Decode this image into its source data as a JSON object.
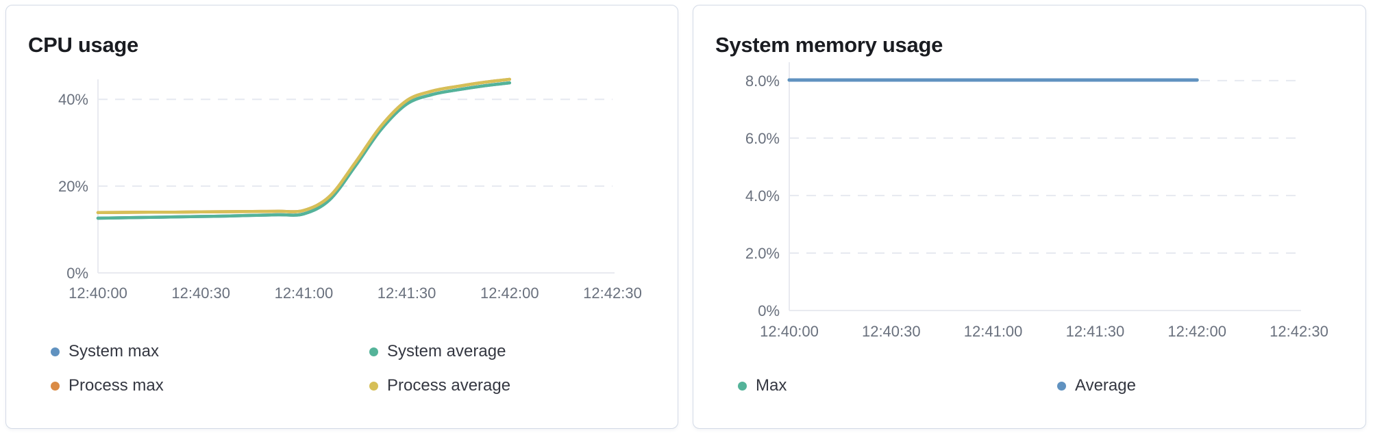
{
  "page": {
    "background": "#ffffff"
  },
  "colors": {
    "panel_border": "#d3dae6",
    "title_text": "#1a1c21",
    "tick_text": "#69707d",
    "legend_text": "#343741",
    "gridline": "#e6e9f0",
    "axis_line": "#e8eaf0"
  },
  "chart_data": [
    {
      "type": "line",
      "title": "CPU usage",
      "xlabel": "",
      "ylabel": "",
      "legend_position": "bottom",
      "grid": "dashed-horizontal",
      "x_ticks": [
        "12:40:00",
        "12:40:30",
        "12:41:00",
        "12:41:30",
        "12:42:00",
        "12:42:30"
      ],
      "x_tick_seconds": [
        0,
        30,
        60,
        90,
        120,
        150
      ],
      "x_range_seconds": [
        0,
        150
      ],
      "y_ticks": [
        {
          "v": 0,
          "label": "0%"
        },
        {
          "v": 20,
          "label": "20%"
        },
        {
          "v": 40,
          "label": "40%"
        }
      ],
      "grid_values": [
        20,
        40
      ],
      "ylim": [
        0,
        44.6
      ],
      "data_x_seconds": [
        0,
        7.5,
        15,
        22.5,
        30,
        37.5,
        45,
        52.5,
        60,
        67.5,
        75,
        82.5,
        90,
        97.5,
        105,
        112.5,
        120
      ],
      "series": [
        {
          "name": "System max",
          "color": "#6092c0",
          "values": [
            12.6,
            12.7,
            12.8,
            12.9,
            13.0,
            13.1,
            13.25,
            13.4,
            13.6,
            16.8,
            24.6,
            33.0,
            38.9,
            41.1,
            42.2,
            43.1,
            43.8
          ]
        },
        {
          "name": "System average",
          "color": "#54b399",
          "values": [
            12.6,
            12.7,
            12.8,
            12.9,
            13.0,
            13.1,
            13.25,
            13.4,
            13.6,
            16.8,
            24.6,
            33.0,
            38.9,
            41.1,
            42.2,
            43.1,
            43.8
          ]
        },
        {
          "name": "Process max",
          "color": "#da8b45",
          "values": [
            13.9,
            13.95,
            14.0,
            14.0,
            14.05,
            14.1,
            14.15,
            14.2,
            14.4,
            17.6,
            25.4,
            33.8,
            39.7,
            41.9,
            43.0,
            43.9,
            44.6
          ]
        },
        {
          "name": "Process average",
          "color": "#d6bf57",
          "values": [
            13.9,
            13.95,
            14.0,
            14.0,
            14.05,
            14.1,
            14.15,
            14.2,
            14.4,
            17.6,
            25.4,
            33.8,
            39.7,
            41.9,
            43.0,
            43.9,
            44.6
          ]
        }
      ],
      "note": "System max overlaps System average; Process max overlaps Process average. Visible lines: green (System average) and yellow (Process average). Data ends at 12:42:00."
    },
    {
      "type": "line",
      "title": "System memory usage",
      "xlabel": "",
      "ylabel": "",
      "legend_position": "bottom",
      "grid": "dashed-horizontal",
      "x_ticks": [
        "12:40:00",
        "12:40:30",
        "12:41:00",
        "12:41:30",
        "12:42:00",
        "12:42:30"
      ],
      "x_tick_seconds": [
        0,
        30,
        60,
        90,
        120,
        150
      ],
      "x_range_seconds": [
        0,
        150
      ],
      "y_ticks": [
        {
          "v": 0,
          "label": "0%"
        },
        {
          "v": 2,
          "label": "2.0%"
        },
        {
          "v": 4,
          "label": "4.0%"
        },
        {
          "v": 6,
          "label": "6.0%"
        },
        {
          "v": 8,
          "label": "8.0%"
        }
      ],
      "grid_values": [
        2,
        4,
        6,
        8
      ],
      "ylim": [
        0,
        8.64
      ],
      "data_x_seconds": [
        0,
        15,
        30,
        45,
        60,
        75,
        90,
        105,
        120
      ],
      "series": [
        {
          "name": "Max",
          "color": "#54b399",
          "values": [
            8.02,
            8.02,
            8.02,
            8.02,
            8.02,
            8.02,
            8.02,
            8.02,
            8.02
          ]
        },
        {
          "name": "Average",
          "color": "#6092c0",
          "values": [
            8.02,
            8.02,
            8.02,
            8.02,
            8.02,
            8.02,
            8.02,
            8.02,
            8.02
          ]
        }
      ],
      "note": "Max and Average overlap exactly; blue (Average) drawn on top. Data ends at 12:42:00."
    }
  ]
}
